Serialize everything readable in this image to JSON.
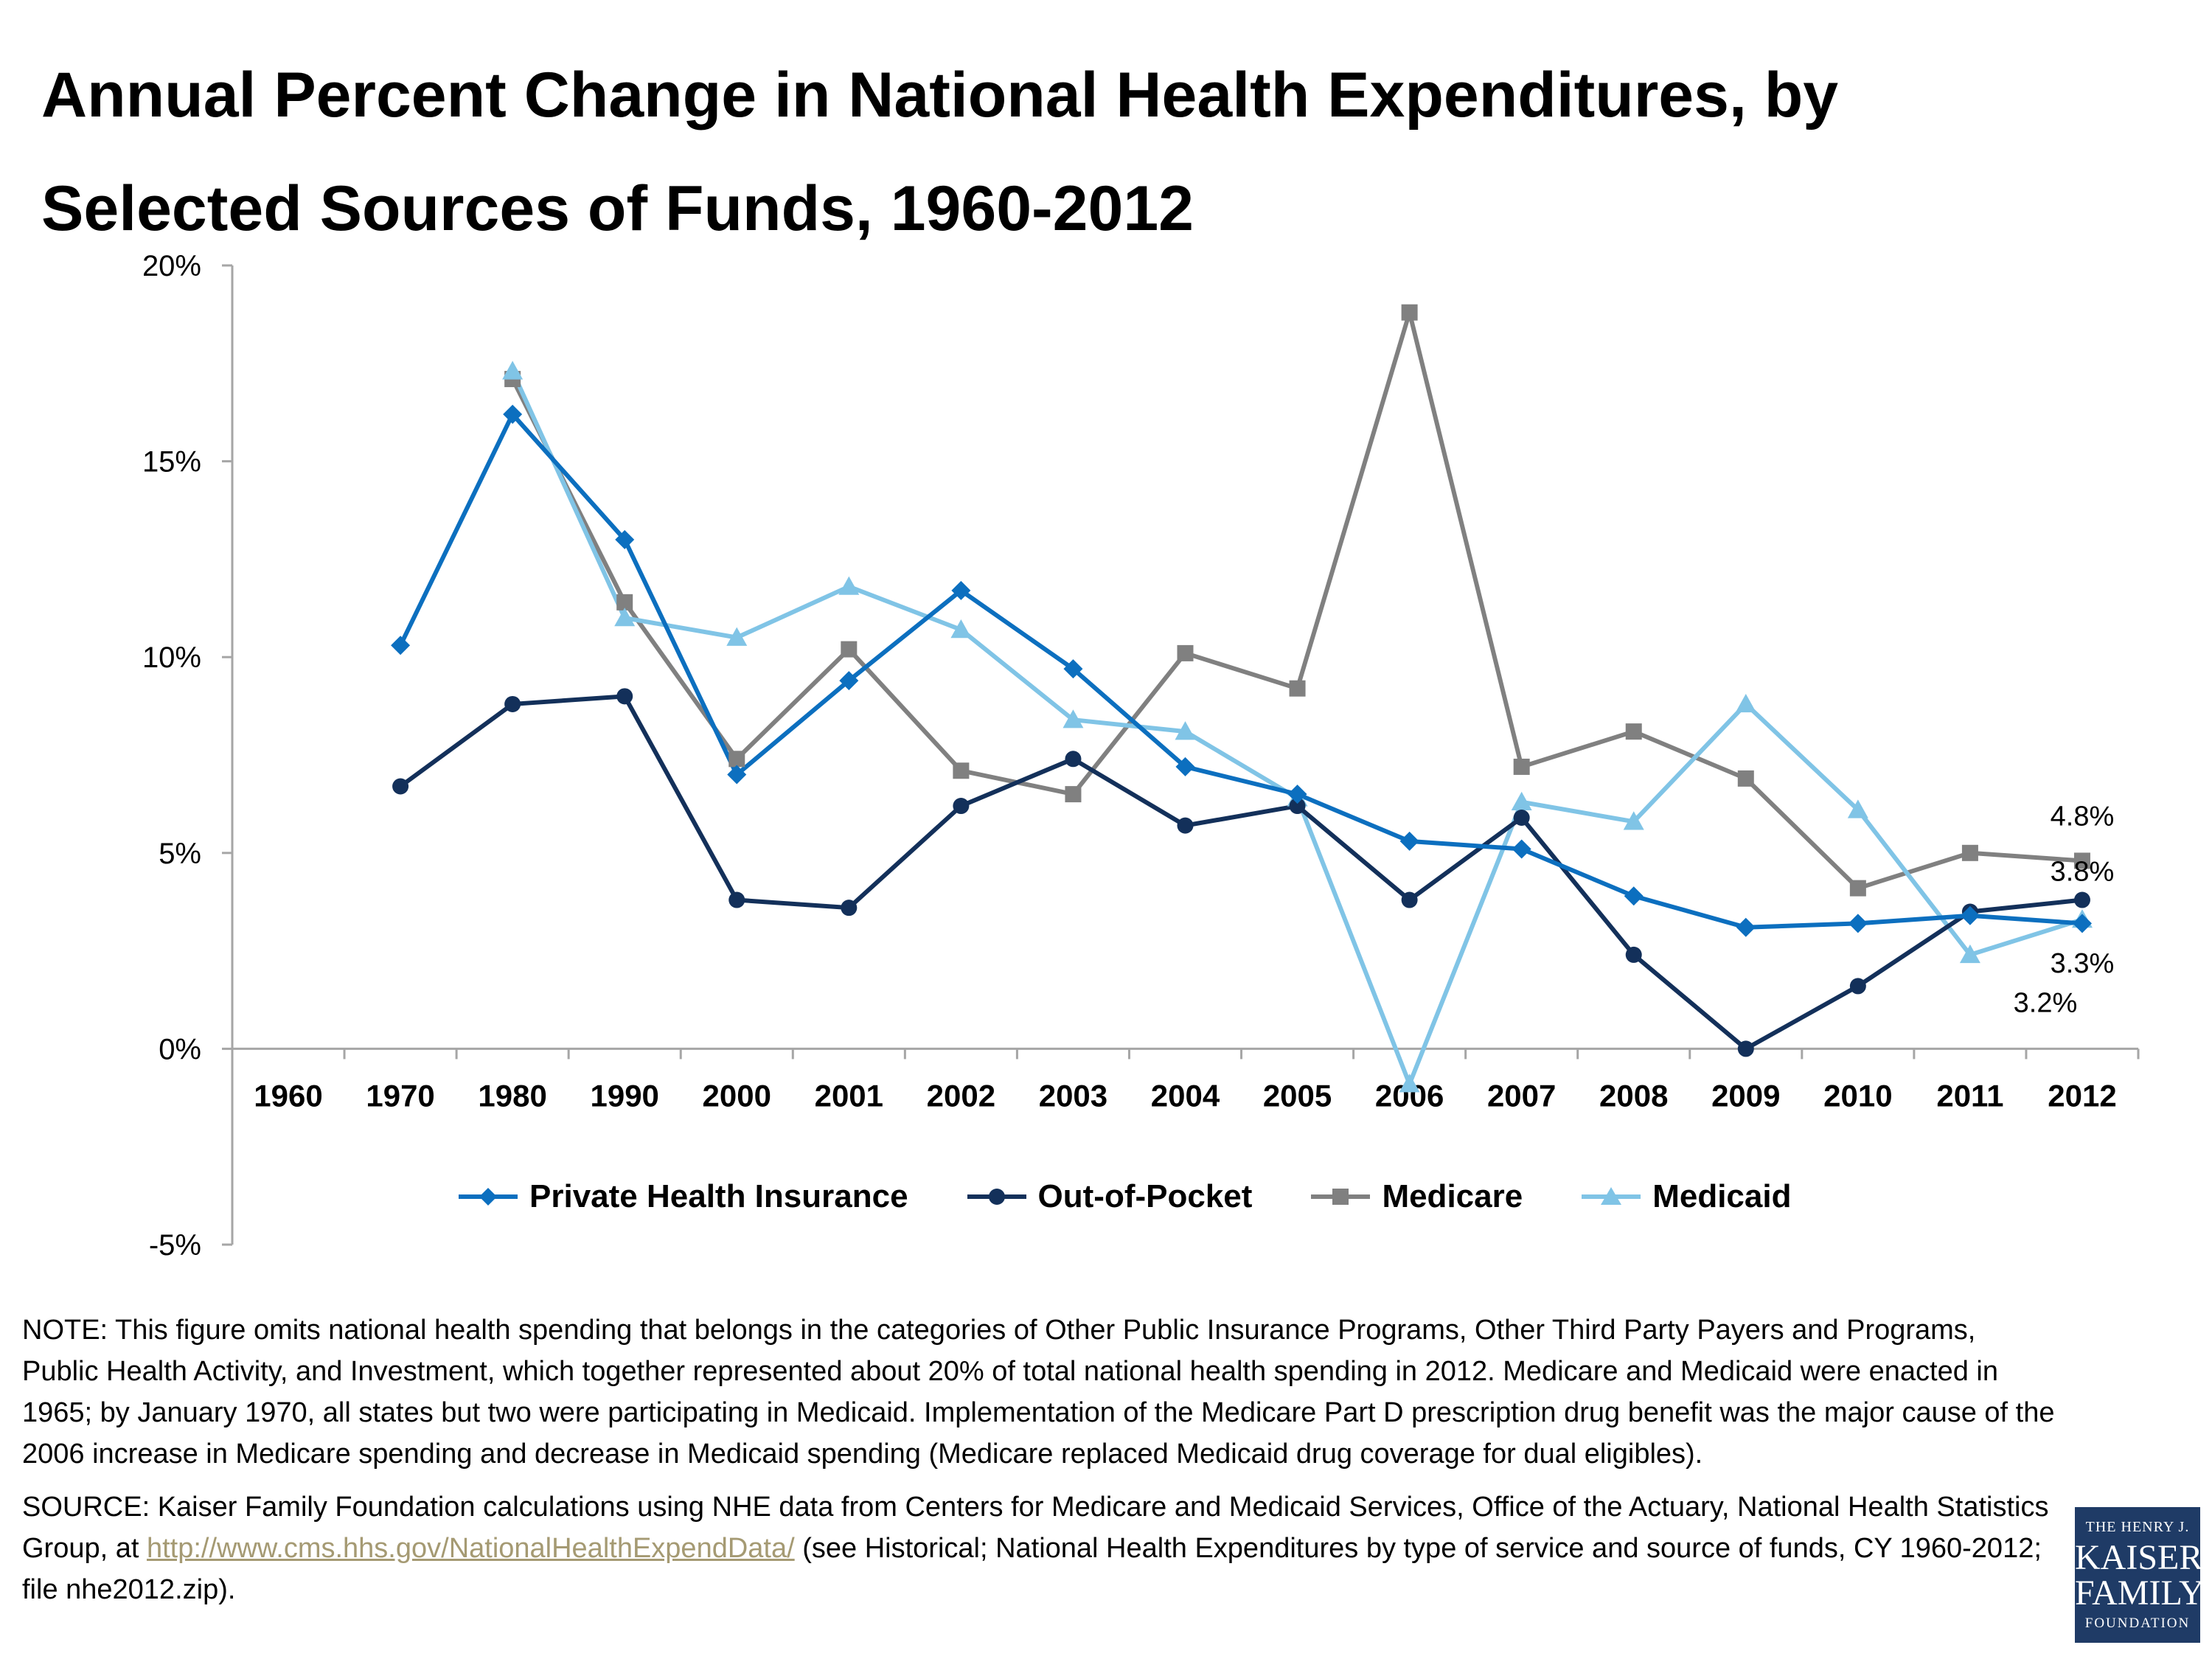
{
  "title": {
    "line1": "Annual Percent Change in National Health Expenditures, by",
    "line2": "Selected Sources of Funds, 1960-2012"
  },
  "chart_data": {
    "type": "line",
    "categories": [
      "1960",
      "1970",
      "1980",
      "1990",
      "2000",
      "2001",
      "2002",
      "2003",
      "2004",
      "2005",
      "2006",
      "2007",
      "2008",
      "2009",
      "2010",
      "2011",
      "2012"
    ],
    "y_ticks": [
      "20%",
      "15%",
      "10%",
      "5%",
      "0%",
      "-5%"
    ],
    "ylim": [
      -5,
      20
    ],
    "grid": false,
    "legend_position": "bottom",
    "series": [
      {
        "name": "Private Health Insurance",
        "color": "#0c6fbf",
        "marker": "diamond",
        "values": [
          null,
          10.3,
          16.2,
          13.0,
          7.0,
          9.4,
          11.7,
          9.7,
          7.2,
          6.5,
          5.3,
          5.1,
          3.9,
          3.1,
          3.2,
          3.4,
          3.2
        ]
      },
      {
        "name": "Out-of-Pocket",
        "color": "#13305a",
        "marker": "circle",
        "values": [
          null,
          6.7,
          8.8,
          9.0,
          3.8,
          3.6,
          6.2,
          7.4,
          5.7,
          6.2,
          3.8,
          5.9,
          2.4,
          0.0,
          1.6,
          3.5,
          3.8
        ]
      },
      {
        "name": "Medicare",
        "color": "#808080",
        "marker": "square",
        "values": [
          null,
          null,
          17.1,
          11.4,
          7.4,
          10.2,
          7.1,
          6.5,
          10.1,
          9.2,
          18.8,
          7.2,
          8.1,
          6.9,
          4.1,
          5.0,
          4.8
        ]
      },
      {
        "name": "Medicaid",
        "color": "#80c4e6",
        "marker": "triangle",
        "values": [
          null,
          null,
          17.3,
          11.0,
          10.5,
          11.8,
          10.7,
          8.4,
          8.1,
          6.4,
          -0.9,
          6.3,
          5.8,
          8.8,
          6.1,
          2.4,
          3.3
        ]
      }
    ],
    "data_labels": [
      {
        "series": "Medicare",
        "category": "2012",
        "text": "4.8%"
      },
      {
        "series": "Out-of-Pocket",
        "category": "2012",
        "text": "3.8%"
      },
      {
        "series": "Medicaid",
        "category": "2012",
        "text": "3.3%"
      },
      {
        "series": "Private Health Insurance",
        "category": "2012",
        "text": "3.2%"
      }
    ]
  },
  "notes": {
    "note": "NOTE: This figure omits national health spending that belongs in the categories of Other Public Insurance Programs, Other Third Party Payers and Programs, Public Health Activity, and Investment, which together represented about 20% of total national health spending in 2012. Medicare and Medicaid were enacted in 1965; by January 1970, all states but two were participating in Medicaid. Implementation of the Medicare Part D prescription drug benefit was the major cause of the 2006 increase in Medicare spending and decrease in Medicaid spending (Medicare replaced Medicaid drug coverage for dual eligibles).",
    "source_prefix": "SOURCE: Kaiser Family Foundation calculations using NHE data from Centers for Medicare and Medicaid Services, Office of the Actuary, National Health Statistics Group, at ",
    "source_link": "http://www.cms.hhs.gov/NationalHealthExpendData/",
    "source_suffix": " (see Historical; National Health Expenditures by type of service and source of funds, CY 1960-2012; file nhe2012.zip)."
  },
  "logo": {
    "line1": "THE HENRY J.",
    "line2": "KAISER",
    "line3": "FAMILY",
    "line4": "FOUNDATION"
  }
}
